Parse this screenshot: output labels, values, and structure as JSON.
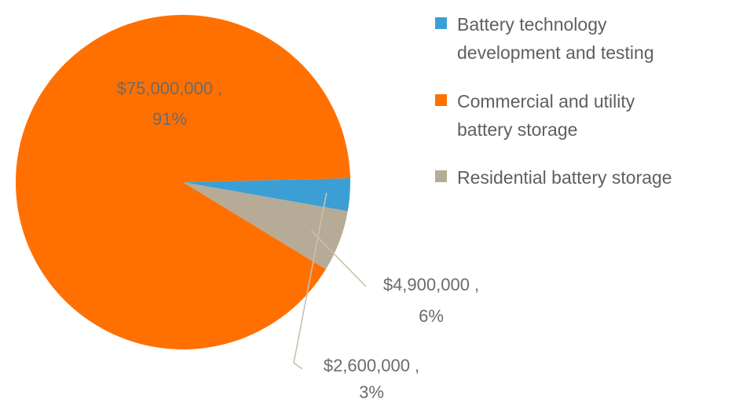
{
  "chart_data": {
    "type": "pie",
    "title": "",
    "legend_position": "right",
    "series": [
      {
        "values": [
          2600000,
          75000000,
          4900000
        ]
      }
    ],
    "categories": [
      "Battery technology development and testing",
      "Commercial and utility battery storage",
      "Residential battery storage"
    ],
    "slices": [
      {
        "label": "Battery technology development and testing",
        "legend_lines": [
          "Battery technology",
          "development and testing"
        ],
        "value": 2600000,
        "value_text": "$2,600,000 ,",
        "percent_text": "3%",
        "color": "#3b9fd6"
      },
      {
        "label": "Commercial and utility battery storage",
        "legend_lines": [
          "Commercial and utility",
          "battery storage"
        ],
        "value": 75000000,
        "value_text": "$75,000,000 ,",
        "percent_text": "91%",
        "color": "#ff7000"
      },
      {
        "label": "Residential battery storage",
        "legend_lines": [
          "Residential battery storage"
        ],
        "value": 4900000,
        "value_text": "$4,900,000 ,",
        "percent_text": "6%",
        "color": "#b5ab97"
      }
    ]
  }
}
